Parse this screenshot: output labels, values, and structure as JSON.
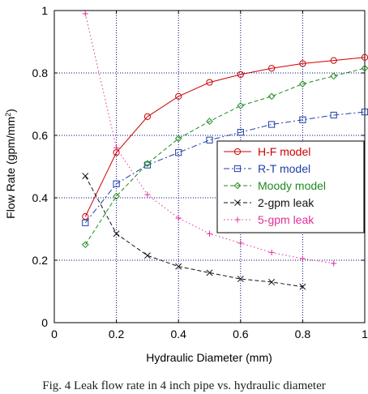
{
  "chart_data": {
    "type": "line",
    "xlabel": "Hydraulic Diameter (mm)",
    "ylabel_main": "Flow Rate (gpm/mm",
    "ylabel_sup": "2",
    "ylabel_close": ")",
    "xlim": [
      0,
      1
    ],
    "ylim": [
      0,
      1
    ],
    "xticks": [
      0,
      0.2,
      0.4,
      0.6,
      0.8,
      1
    ],
    "yticks": [
      0,
      0.2,
      0.4,
      0.6,
      0.8,
      1
    ],
    "xtick_labels": [
      "0",
      "0.2",
      "0.4",
      "0.6",
      "0.8",
      "1"
    ],
    "ytick_labels": [
      "0",
      "0.2",
      "0.4",
      "0.6",
      "0.8",
      "1"
    ],
    "grid": true,
    "legend_position": "center-right",
    "series": [
      {
        "name": "H-F model",
        "color": "#cc0000",
        "dash": "solid",
        "marker": "circle",
        "x": [
          0.1,
          0.2,
          0.3,
          0.4,
          0.5,
          0.6,
          0.7,
          0.8,
          0.9,
          1.0
        ],
        "y": [
          0.34,
          0.545,
          0.66,
          0.725,
          0.77,
          0.795,
          0.815,
          0.83,
          0.84,
          0.85
        ]
      },
      {
        "name": "R-T model",
        "color": "#1f3fa8",
        "dash": "dashdot",
        "marker": "square",
        "x": [
          0.1,
          0.2,
          0.3,
          0.4,
          0.5,
          0.6,
          0.7,
          0.8,
          0.9,
          1.0
        ],
        "y": [
          0.32,
          0.445,
          0.505,
          0.545,
          0.585,
          0.61,
          0.635,
          0.65,
          0.665,
          0.675
        ]
      },
      {
        "name": "Moody model",
        "color": "#1e8a1e",
        "dash": "dashed",
        "marker": "diamond",
        "x": [
          0.1,
          0.2,
          0.3,
          0.4,
          0.5,
          0.6,
          0.7,
          0.8,
          0.9,
          1.0
        ],
        "y": [
          0.25,
          0.405,
          0.51,
          0.59,
          0.645,
          0.695,
          0.725,
          0.765,
          0.79,
          0.815
        ]
      },
      {
        "name": "2-gpm leak",
        "color": "#111111",
        "dash": "dashed",
        "marker": "x",
        "x": [
          0.1,
          0.2,
          0.3,
          0.4,
          0.5,
          0.6,
          0.7,
          0.8
        ],
        "y": [
          0.47,
          0.285,
          0.215,
          0.18,
          0.16,
          0.14,
          0.13,
          0.115
        ]
      },
      {
        "name": "5-gpm leak",
        "color": "#e0309a",
        "dash": "dotted",
        "marker": "plus",
        "x": [
          0.1,
          0.2,
          0.3,
          0.4,
          0.5,
          0.6,
          0.7,
          0.8,
          0.9
        ],
        "y": [
          0.99,
          0.56,
          0.41,
          0.335,
          0.285,
          0.255,
          0.225,
          0.205,
          0.19
        ]
      }
    ]
  },
  "caption": "Fig. 4 Leak flow rate in 4 inch pipe vs. hydraulic diameter"
}
